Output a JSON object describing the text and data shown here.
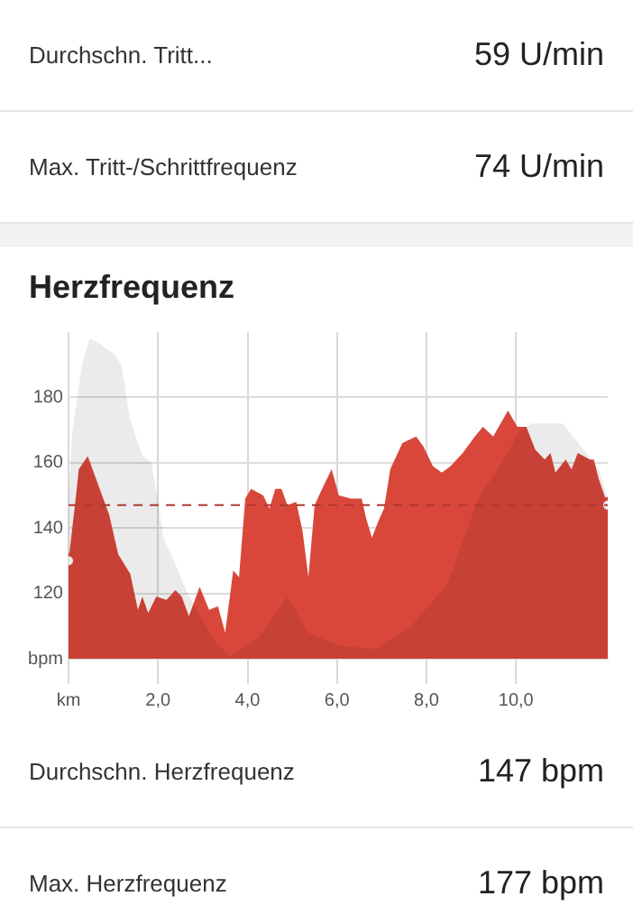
{
  "chart_data": {
    "type": "area",
    "title": "Herzfrequenz",
    "annotations": [
      "Durchschn. Tritt...",
      "59 U/min",
      "Max. Tritt-/Schrittfrequenz",
      "74 U/min",
      "Durchschn. Herzfrequenz",
      "147 bpm",
      "Max. Herzfrequenz",
      "177 bpm"
    ],
    "series": [
      {
        "color": "#d9473b",
        "x": [
          0,
          0.16,
          0.23,
          0.43,
          0.91,
          1.11,
          1.38,
          1.55,
          1.65,
          1.78,
          1.96,
          2.19,
          2.39,
          2.53,
          2.69,
          2.93,
          3.14,
          3.34,
          3.5,
          3.68,
          3.81,
          3.95,
          4.08,
          4.35,
          4.49,
          4.62,
          4.76,
          4.89,
          5.09,
          5.23,
          5.36,
          5.5,
          5.7,
          5.88,
          6.04,
          6.31,
          6.55,
          6.65,
          6.78,
          6.92,
          7.05,
          7.19,
          7.46,
          7.77,
          7.93,
          8.14,
          8.34,
          8.54,
          8.81,
          9.08,
          9.26,
          9.49,
          9.82,
          10.03,
          10.23,
          10.43,
          10.64,
          10.77,
          10.88,
          11.11,
          11.24,
          11.38,
          11.65,
          11.74,
          11.85,
          12.05
        ],
        "values": [
          130,
          149,
          158,
          162,
          144,
          132,
          126,
          115,
          119,
          114,
          119,
          118,
          121,
          119,
          113,
          122,
          115,
          116,
          108,
          127,
          125,
          149,
          152,
          150,
          146,
          152,
          152,
          147,
          148,
          139,
          125,
          147,
          153,
          158,
          150,
          149,
          149,
          143,
          137,
          142,
          146,
          158,
          166,
          168,
          165,
          159,
          157,
          159,
          163,
          168,
          171,
          168,
          176,
          171,
          171,
          164,
          161,
          163,
          157,
          161,
          158,
          163,
          161,
          161,
          155,
          147
        ]
      },
      {
        "color": "#ebebeb",
        "x": [
          0,
          0.09,
          0.3,
          0.47,
          0.64,
          0.84,
          1.04,
          1.18,
          1.38,
          1.65,
          1.85,
          1.99,
          2.12,
          2.39,
          2.66,
          3.07,
          3.34,
          3.61,
          4.28,
          4.89,
          5.36,
          6.04,
          6.85,
          7.66,
          8.47,
          9.15,
          9.69,
          10.09,
          10.36,
          11.04,
          11.45,
          11.85,
          12.05
        ],
        "values": [
          150,
          170,
          190,
          198,
          197,
          195,
          193,
          190,
          173,
          162,
          160,
          149,
          137,
          129,
          120,
          110,
          104,
          101,
          107,
          119,
          108,
          104,
          103,
          110,
          123,
          149,
          160,
          170,
          172,
          172,
          165,
          158,
          149
        ]
      }
    ],
    "xlim": [
      0,
      12.05
    ],
    "xticks": [
      {
        "value": 0,
        "label": "km"
      },
      {
        "value": 2,
        "label": "2,0"
      },
      {
        "value": 4,
        "label": "4,0"
      },
      {
        "value": 6,
        "label": "6,0"
      },
      {
        "value": 8,
        "label": "8,0"
      },
      {
        "value": 10,
        "label": "10,0"
      }
    ],
    "ylim": [
      100,
      200
    ],
    "yticks": [
      {
        "value": 100,
        "label": "bpm"
      },
      120,
      140,
      160,
      180
    ],
    "ref_lines": [
      {
        "axis": "y",
        "value": 147,
        "color": "#b03a30",
        "line_style": "dashed"
      }
    ],
    "grid": true,
    "legend": false
  }
}
